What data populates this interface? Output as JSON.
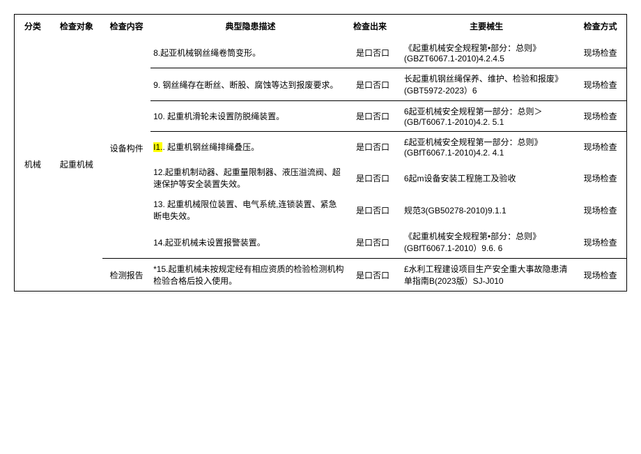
{
  "headers": {
    "category": "分类",
    "object": "检查对象",
    "content": "检查内容",
    "desc": "典型隐患描述",
    "result": "检查出来",
    "basis": "主要械生",
    "method": "检查方式"
  },
  "category": "机械",
  "object": "起重机械",
  "content1": "设备构件",
  "content2": "检测报告",
  "rows": [
    {
      "desc": "8.起亚机械钢丝绳卷筒变形。",
      "result": "是口否口",
      "basis": "《起重机械安全规程第•部分：总则》(GBZT6067.1-2010)4.2.4.5",
      "method": "现场检查"
    },
    {
      "desc": "9. 钢丝绳存在断丝、断股、腐蚀等达到报废要求。",
      "result": "是口否口",
      "basis": "长起重机钢丝绳保养、维护、检验和报废》(GBT5972-2023）6",
      "method": "现场检查"
    },
    {
      "desc": "10. 起重机滑轮未设置防脱绳装置。",
      "result": "是口否口",
      "basis": "6起亚机械安全规程第一部分：总则＞(GB/T6067.1-2010)4.2. 5.1",
      "method": "现场检查"
    },
    {
      "desc_pre": "I1.",
      "desc_post": ". 起重机钢丝绳排绳叠压。",
      "result": "是口否口",
      "basis": "£起亚机械安全规程第一部分：总则》(GBfT6067.1-2010)4.2. 4.1",
      "method": "现场检查"
    },
    {
      "desc": "12.起重机制动器、起重量限制器、液压溢流阀、超速保护等安全装置失效。",
      "result": "是口否口",
      "basis": "6起m设备安装工程施工及验收",
      "method": "现场检查"
    },
    {
      "desc": "13. 起重机械限位装置、电气系统,连锁装置、紧急断电失效。",
      "result": "是口否口",
      "basis": "规范3(GB50278-2010)9.1.1",
      "method": "现场检查"
    },
    {
      "desc": "14.起亚机械未设置报警装置。",
      "result": "是口否口",
      "basis": "《起重机械安全规程第•部分：总则》(GBfT6067.1-2010）9.6. 6",
      "method": "现场检查"
    },
    {
      "desc": "*15.起重机械未按规定经有相应资质的检验检测机构检验合格后投入使用。",
      "result": "是口否口",
      "basis": "£水利工程建设项目生产安全重大事故隐患清单指南B(2023版）SJ-J010",
      "method": "现场检查"
    }
  ]
}
